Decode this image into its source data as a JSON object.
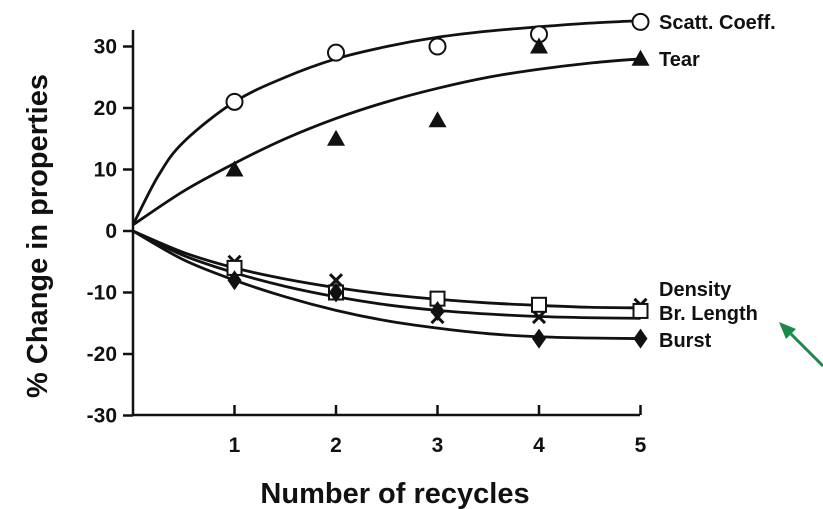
{
  "chart_data": {
    "type": "line",
    "title": "",
    "xlabel": "Number of recycles",
    "ylabel": "% Change in properties",
    "xlim": [
      0,
      5
    ],
    "ylim": [
      -30,
      33
    ],
    "x_ticks": [
      "1",
      "2",
      "3",
      "4",
      "5"
    ],
    "y_ticks": [
      "30",
      "20",
      "10",
      "0",
      "-10",
      "-20",
      "-30"
    ],
    "grid": false,
    "legend": "direct labels at right end of each series",
    "series": [
      {
        "name": "Scatt. Coeff.",
        "marker": "open-circle",
        "x": [
          0,
          1,
          2,
          3,
          4,
          5
        ],
        "y": [
          0,
          21,
          29,
          30,
          32,
          34
        ]
      },
      {
        "name": "Tear",
        "marker": "filled-triangle",
        "x": [
          0,
          1,
          2,
          3,
          4,
          5
        ],
        "y": [
          0,
          10,
          15,
          18,
          30,
          28
        ]
      },
      {
        "name": "Density",
        "marker": "x",
        "x": [
          0,
          1,
          2,
          3,
          4,
          5
        ],
        "y": [
          0,
          -5,
          -8,
          -14,
          -14,
          -12
        ]
      },
      {
        "name": "Br. Length",
        "marker": "open-square",
        "x": [
          0,
          1,
          2,
          3,
          4,
          5
        ],
        "y": [
          0,
          -6,
          -10,
          -11,
          -12,
          -13
        ]
      },
      {
        "name": "Burst",
        "marker": "filled-diamond",
        "x": [
          0,
          1,
          2,
          3,
          4,
          5
        ],
        "y": [
          0,
          -8,
          -10,
          -13,
          -17.5,
          -17.5
        ]
      }
    ],
    "fitted_curves": [
      {
        "series": "Scatt. Coeff.",
        "x": [
          0,
          0.25,
          0.5,
          1,
          1.5,
          2,
          2.5,
          3,
          3.5,
          4,
          4.5,
          5
        ],
        "y": [
          1,
          9,
          14.5,
          21,
          25,
          28,
          30,
          31.5,
          32.5,
          33.2,
          33.8,
          34.2
        ]
      },
      {
        "series": "Tear",
        "x": [
          0,
          0.5,
          1,
          1.5,
          2,
          2.5,
          3,
          3.5,
          4,
          4.5,
          5
        ],
        "y": [
          1,
          6.5,
          11,
          15,
          18.3,
          21,
          23.2,
          25,
          26.3,
          27.3,
          28
        ]
      },
      {
        "series": "Density",
        "x": [
          0,
          0.5,
          1,
          1.5,
          2,
          2.5,
          3,
          3.5,
          4,
          4.5,
          5
        ],
        "y": [
          0,
          -3.5,
          -6,
          -7.8,
          -9.2,
          -10.3,
          -11.1,
          -11.7,
          -12.1,
          -12.4,
          -12.5
        ]
      },
      {
        "series": "Br. Length",
        "x": [
          0,
          0.5,
          1,
          1.5,
          2,
          2.5,
          3,
          3.5,
          4,
          4.5,
          5
        ],
        "y": [
          0,
          -4,
          -6.8,
          -9,
          -10.7,
          -12,
          -12.9,
          -13.5,
          -13.9,
          -14.1,
          -14.2
        ]
      },
      {
        "series": "Burst",
        "x": [
          0,
          0.5,
          1,
          1.5,
          2,
          2.5,
          3,
          3.5,
          4,
          4.5,
          5
        ],
        "y": [
          0,
          -4.7,
          -8,
          -10.7,
          -12.9,
          -14.6,
          -15.8,
          -16.7,
          -17.2,
          -17.4,
          -17.5
        ]
      }
    ],
    "annotation": {
      "type": "arrow",
      "color": "#1a8a4a",
      "points_to": "Br. Length"
    }
  }
}
